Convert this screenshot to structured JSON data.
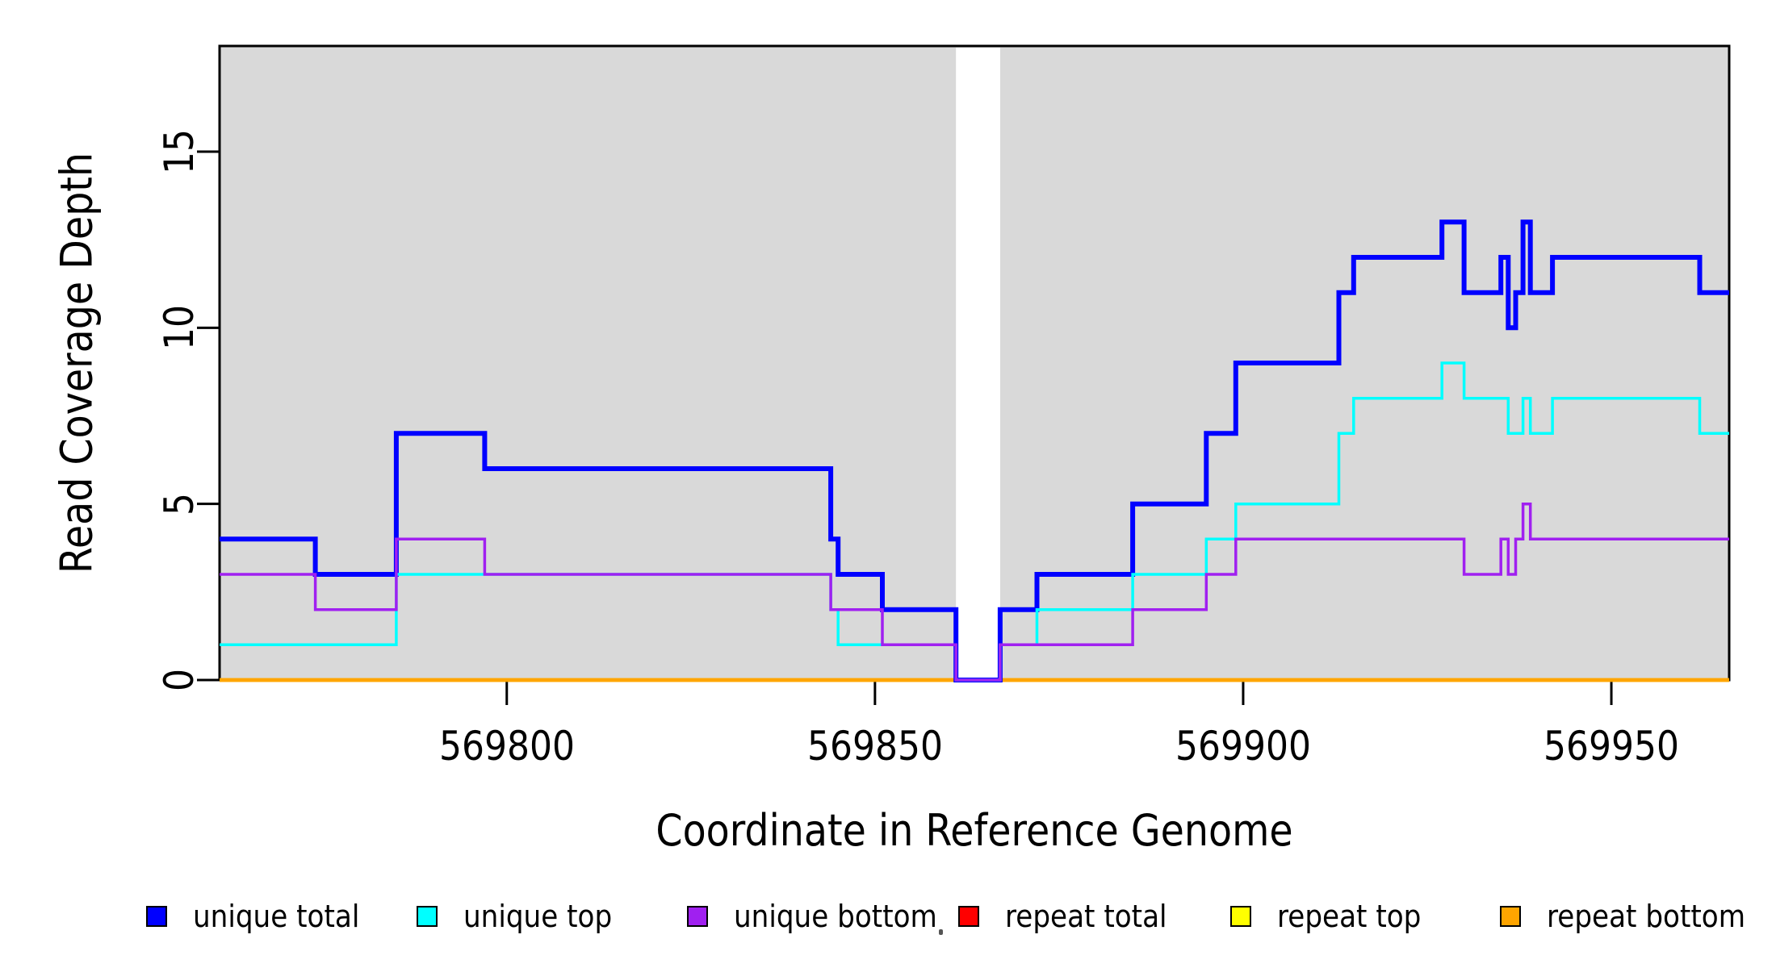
{
  "chart_data": {
    "type": "line",
    "subtype": "step",
    "title": "",
    "xlabel": "Coordinate in Reference Genome",
    "ylabel": "Read Coverage Depth",
    "xlim": [
      569761,
      569966
    ],
    "ylim": [
      0,
      18
    ],
    "xticks": [
      569800,
      569850,
      569900,
      569950
    ],
    "yticks": [
      0,
      5,
      10,
      15
    ],
    "grid": false,
    "plot_bg": "#d9d9d9",
    "gap_region": {
      "x0": 569861,
      "x1": 569867,
      "color": "#ffffff"
    },
    "legend_position": "bottom",
    "legend": [
      {
        "label": "unique total",
        "color": "#0000ff"
      },
      {
        "label": "unique top",
        "color": "#00ffff"
      },
      {
        "label": "unique bottom",
        "color": "#a020f0"
      },
      {
        "label": "repeat total",
        "color": "#ff0000"
      },
      {
        "label": "repeat top",
        "color": "#ffff00"
      },
      {
        "label": "repeat bottom",
        "color": "#ffa500"
      }
    ],
    "series": [
      {
        "name": "repeat total",
        "color": "#ff0000",
        "width": 4.5,
        "steps": [
          [
            569761,
            0
          ],
          [
            569966,
            0
          ]
        ]
      },
      {
        "name": "repeat top",
        "color": "#ffff00",
        "width": 4.5,
        "steps": [
          [
            569761,
            0
          ],
          [
            569966,
            0
          ]
        ]
      },
      {
        "name": "repeat bottom",
        "color": "#ffa500",
        "width": 4.5,
        "steps": [
          [
            569761,
            0
          ],
          [
            569966,
            0
          ]
        ]
      },
      {
        "name": "unique total",
        "color": "#0000ff",
        "width": 6,
        "steps": [
          [
            569761,
            4
          ],
          [
            569774,
            3
          ],
          [
            569785,
            7
          ],
          [
            569797,
            6
          ],
          [
            569844,
            4
          ],
          [
            569845,
            3
          ],
          [
            569851,
            2
          ],
          [
            569861,
            0
          ],
          [
            569867,
            2
          ],
          [
            569872,
            3
          ],
          [
            569885,
            5
          ],
          [
            569895,
            7
          ],
          [
            569899,
            9
          ],
          [
            569913,
            11
          ],
          [
            569915,
            12
          ],
          [
            569927,
            13
          ],
          [
            569930,
            11
          ],
          [
            569935,
            12
          ],
          [
            569936,
            10
          ],
          [
            569937,
            11
          ],
          [
            569938,
            13
          ],
          [
            569939,
            11
          ],
          [
            569942,
            12
          ],
          [
            569962,
            11
          ],
          [
            569966,
            11
          ]
        ]
      },
      {
        "name": "unique top",
        "color": "#00ffff",
        "width": 3.5,
        "steps": [
          [
            569761,
            1
          ],
          [
            569785,
            3
          ],
          [
            569844,
            2
          ],
          [
            569845,
            1
          ],
          [
            569861,
            0
          ],
          [
            569867,
            1
          ],
          [
            569872,
            2
          ],
          [
            569885,
            3
          ],
          [
            569895,
            4
          ],
          [
            569899,
            5
          ],
          [
            569913,
            7
          ],
          [
            569915,
            8
          ],
          [
            569927,
            9
          ],
          [
            569930,
            8
          ],
          [
            569936,
            7
          ],
          [
            569938,
            8
          ],
          [
            569939,
            7
          ],
          [
            569942,
            8
          ],
          [
            569962,
            7
          ],
          [
            569966,
            7
          ]
        ]
      },
      {
        "name": "unique bottom",
        "color": "#a020f0",
        "width": 3.5,
        "steps": [
          [
            569761,
            3
          ],
          [
            569774,
            2
          ],
          [
            569785,
            4
          ],
          [
            569797,
            3
          ],
          [
            569844,
            2
          ],
          [
            569851,
            1
          ],
          [
            569861,
            0
          ],
          [
            569867,
            1
          ],
          [
            569885,
            2
          ],
          [
            569895,
            3
          ],
          [
            569899,
            4
          ],
          [
            569930,
            3
          ],
          [
            569935,
            4
          ],
          [
            569936,
            3
          ],
          [
            569937,
            4
          ],
          [
            569938,
            5
          ],
          [
            569939,
            4
          ],
          [
            569966,
            4
          ]
        ]
      }
    ]
  }
}
